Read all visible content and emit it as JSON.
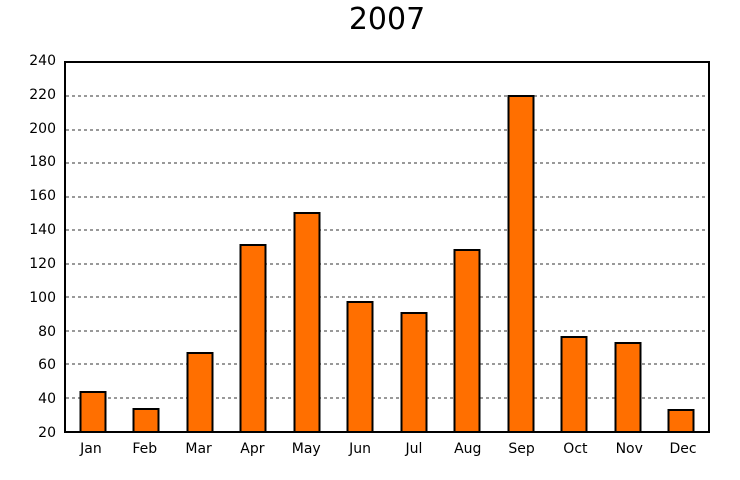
{
  "chart_data": {
    "type": "bar",
    "title": "2007",
    "categories": [
      "Jan",
      "Feb",
      "Mar",
      "Apr",
      "May",
      "Jun",
      "Jul",
      "Aug",
      "Sep",
      "Oct",
      "Nov",
      "Dec"
    ],
    "values": [
      44,
      34,
      67,
      132,
      151,
      98,
      91,
      129,
      221,
      77,
      73,
      33
    ],
    "xlabel": "",
    "ylabel": "",
    "ylim": [
      20,
      240
    ],
    "ytick_step": 20,
    "grid": "horizontal-dashed",
    "legend": "none",
    "colors": {
      "bar_fill": "#ff6f00",
      "bar_border": "#000000",
      "grid_line": "#999999",
      "axis_border": "#000000",
      "text": "#000000",
      "background": "#ffffff"
    }
  }
}
